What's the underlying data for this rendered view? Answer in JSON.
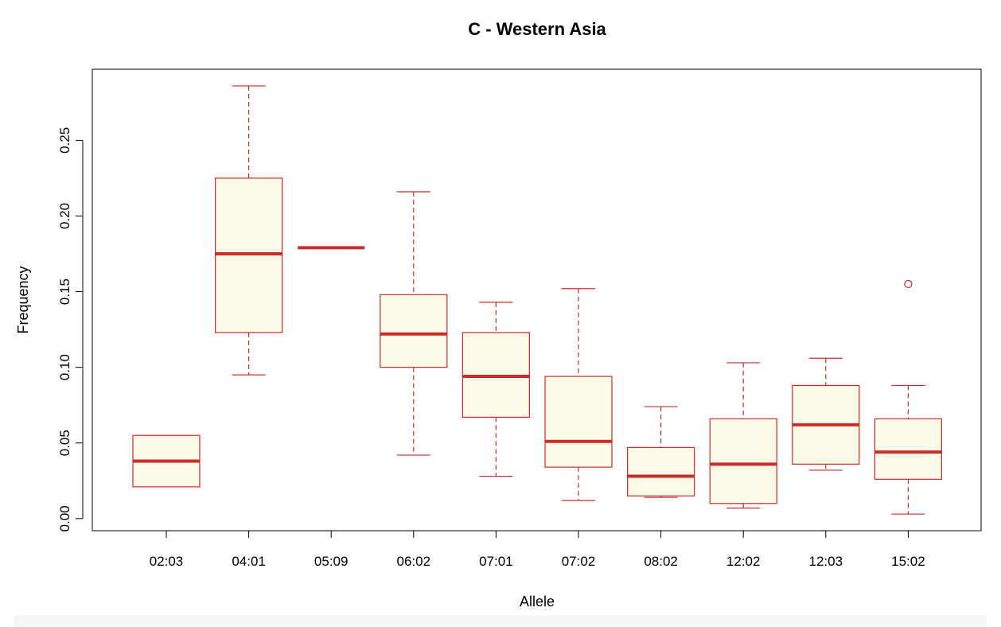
{
  "chart_data": {
    "type": "boxplot",
    "title": "C - Western Asia",
    "xlabel": "Allele",
    "ylabel": "Frequency",
    "ylim": [
      -0.008,
      0.297
    ],
    "yticks": [
      0.0,
      0.05,
      0.1,
      0.15,
      0.2,
      0.25
    ],
    "ytick_labels": [
      "0.00",
      "0.05",
      "0.10",
      "0.15",
      "0.20",
      "0.25"
    ],
    "box_fill": "#fafae6",
    "box_color": "#cc2b2b",
    "categories": [
      "02:03",
      "04:01",
      "05:09",
      "06:02",
      "07:01",
      "07:02",
      "08:02",
      "12:02",
      "12:03",
      "15:02"
    ],
    "boxes": [
      {
        "min": 0.021,
        "q1": 0.021,
        "median": 0.038,
        "q3": 0.055,
        "max": 0.055,
        "outliers": []
      },
      {
        "min": 0.095,
        "q1": 0.123,
        "median": 0.175,
        "q3": 0.225,
        "max": 0.286,
        "outliers": []
      },
      {
        "min": 0.179,
        "q1": 0.179,
        "median": 0.179,
        "q3": 0.179,
        "max": 0.179,
        "outliers": []
      },
      {
        "min": 0.042,
        "q1": 0.1,
        "median": 0.122,
        "q3": 0.148,
        "max": 0.216,
        "outliers": []
      },
      {
        "min": 0.028,
        "q1": 0.067,
        "median": 0.094,
        "q3": 0.123,
        "max": 0.143,
        "outliers": []
      },
      {
        "min": 0.012,
        "q1": 0.034,
        "median": 0.051,
        "q3": 0.094,
        "max": 0.152,
        "outliers": []
      },
      {
        "min": 0.014,
        "q1": 0.015,
        "median": 0.028,
        "q3": 0.047,
        "max": 0.074,
        "outliers": []
      },
      {
        "min": 0.007,
        "q1": 0.01,
        "median": 0.036,
        "q3": 0.066,
        "max": 0.103,
        "outliers": []
      },
      {
        "min": 0.032,
        "q1": 0.036,
        "median": 0.062,
        "q3": 0.088,
        "max": 0.106,
        "outliers": []
      },
      {
        "min": 0.003,
        "q1": 0.026,
        "median": 0.044,
        "q3": 0.066,
        "max": 0.088,
        "outliers": [
          0.155
        ]
      }
    ]
  }
}
